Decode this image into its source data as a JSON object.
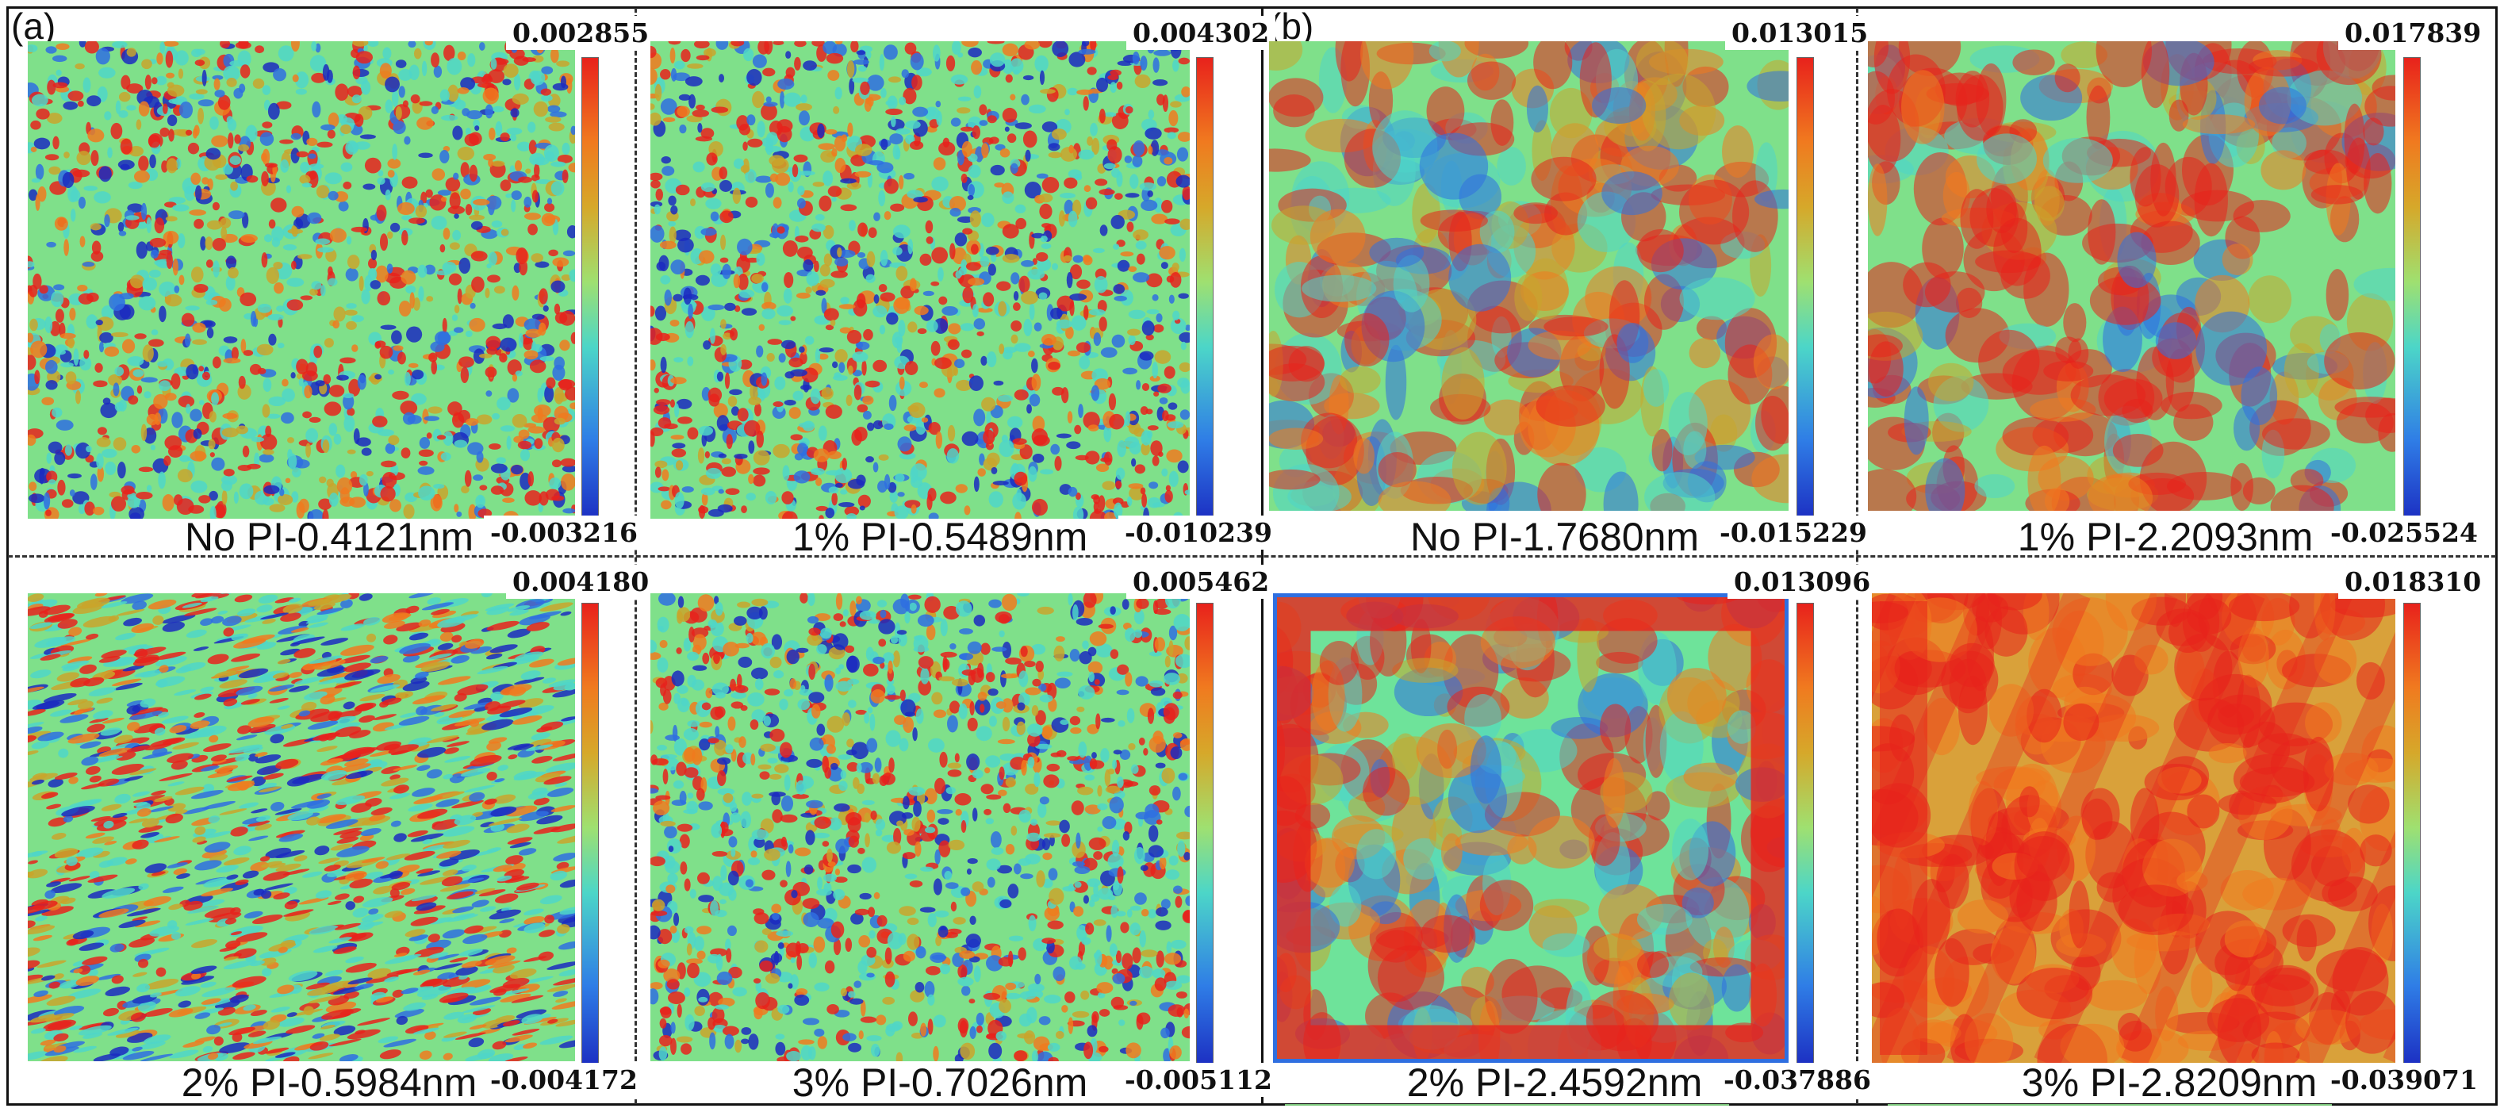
{
  "labels": {
    "a": "(a)",
    "b": "(b)"
  },
  "panels": [
    {
      "caption": "No PI-0.4121nm",
      "max": "0.002855",
      "min": "-0.003216",
      "pattern": "fine-blob"
    },
    {
      "caption": "1% PI-0.5489nm",
      "max": "0.004302",
      "min": "-0.010239",
      "pattern": "fine"
    },
    {
      "caption": "No PI-1.7680nm",
      "max": "0.013015",
      "min": "-0.015229",
      "pattern": "coarse-blob"
    },
    {
      "caption": "1% PI-2.2093nm",
      "max": "0.017839",
      "min": "-0.025524",
      "pattern": "coarse-red"
    },
    {
      "caption": "2% PI-0.5984nm",
      "max": "0.004180",
      "min": "-0.004172",
      "pattern": "streak"
    },
    {
      "caption": "3% PI-0.7026nm",
      "max": "0.005462",
      "min": "-0.005112",
      "pattern": "fine-dense"
    },
    {
      "caption": "2% PI-2.4592nm",
      "max": "0.013096",
      "min": "-0.037886",
      "pattern": "frame-red"
    },
    {
      "caption": "3% PI-2.8209nm",
      "max": "0.018310",
      "min": "-0.039071",
      "pattern": "diagonal-red"
    }
  ],
  "colors": {
    "red": "#e8221c",
    "orange": "#f07a1f",
    "olive": "#c9a52c",
    "green": "#7fe08a",
    "cyan": "#4fd6c8",
    "blue": "#2f6fe0",
    "navy": "#1b2ac0"
  }
}
